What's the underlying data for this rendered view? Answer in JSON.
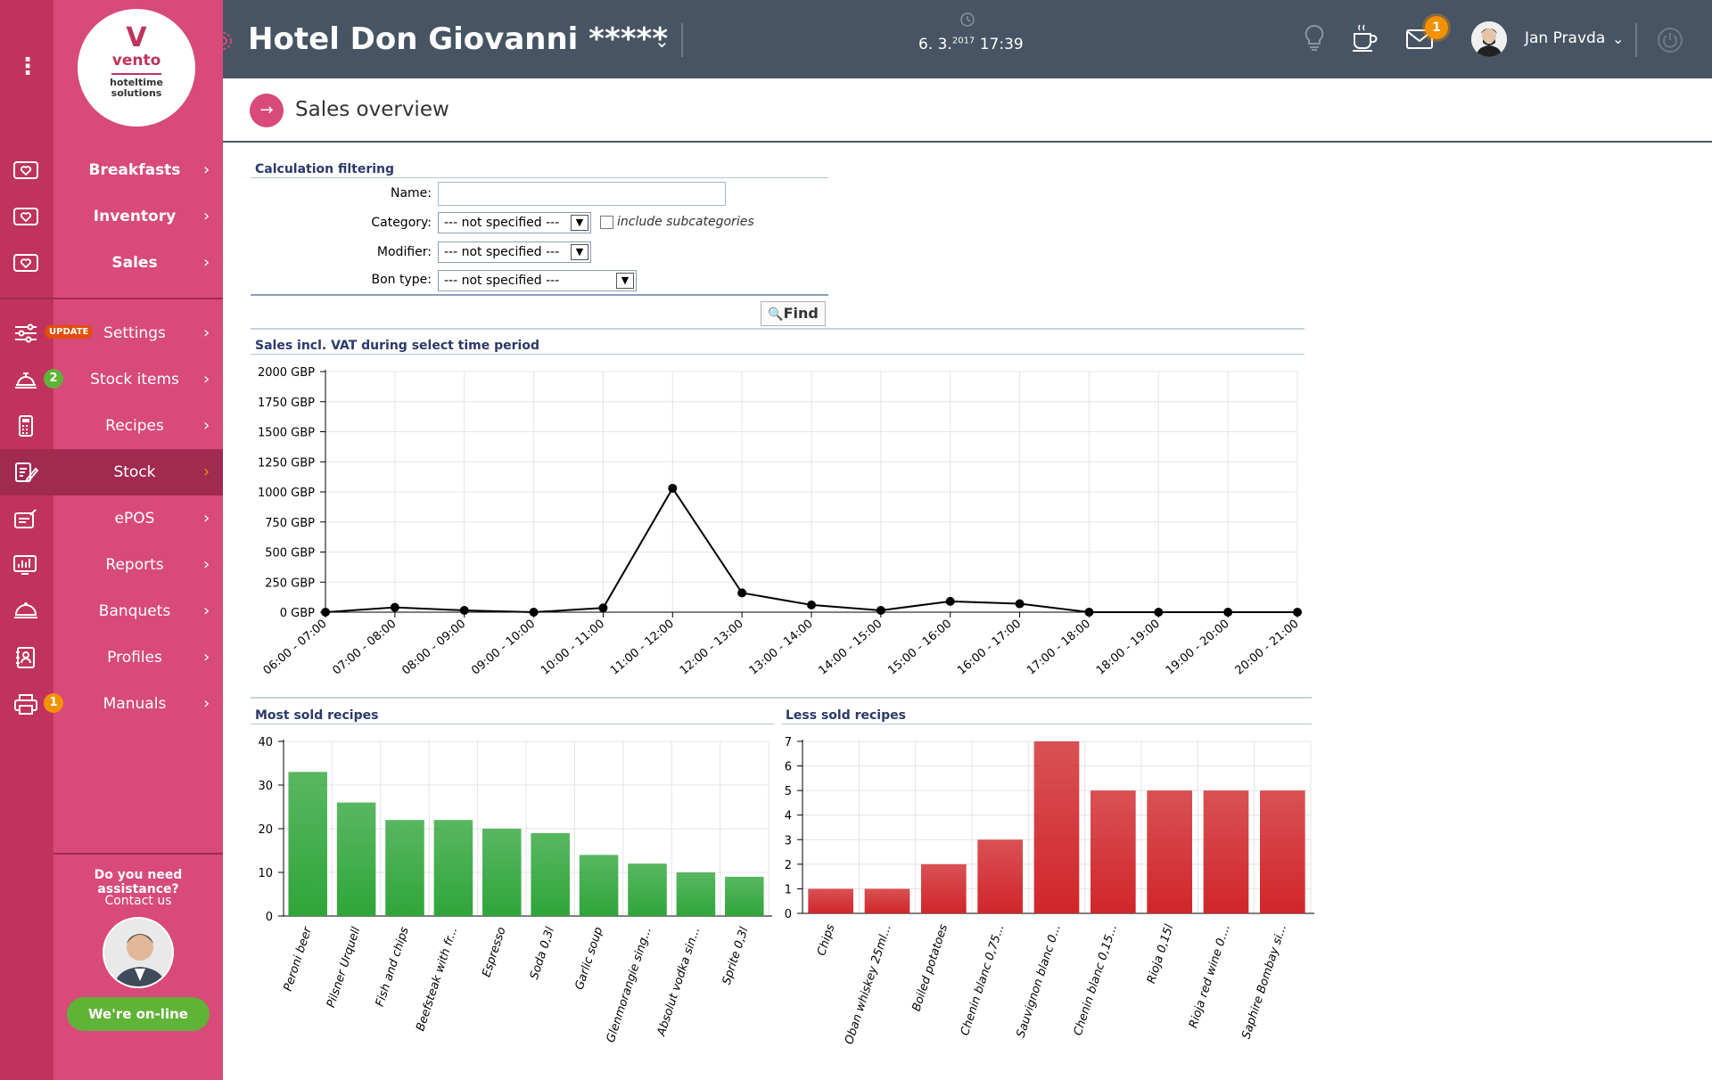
{
  "logo": {
    "mark": "V",
    "name": "vento",
    "sub1": "hoteltime",
    "sub2": "solutions"
  },
  "sidebar": {
    "items": [
      {
        "label": "Breakfasts",
        "bold": true
      },
      {
        "label": "Inventory",
        "bold": true
      },
      {
        "label": "Sales",
        "bold": true
      },
      {
        "label": "Settings",
        "badge": "UPDATE"
      },
      {
        "label": "Stock items",
        "badge": "2"
      },
      {
        "label": "Recipes"
      },
      {
        "label": "Stock",
        "active": true
      },
      {
        "label": "ePOS"
      },
      {
        "label": "Reports"
      },
      {
        "label": "Banquets"
      },
      {
        "label": "Profiles"
      },
      {
        "label": "Manuals",
        "badge": "1"
      }
    ],
    "chevron": "›",
    "assist_title": "Do you need assistance?",
    "assist_link": "Contact us",
    "online_button": "We're on-line"
  },
  "header": {
    "hotel_name": "Hotel Don Giovanni *****",
    "date": "6. 3.",
    "year": "2017",
    "time": "17:39",
    "mail_count": "1",
    "user_name": "Jan Pravda"
  },
  "page": {
    "title": "Sales overview"
  },
  "filter": {
    "section_title": "Calculation filtering",
    "name_label": "Name:",
    "name_value": "",
    "category_label": "Category:",
    "category_value": "--- not specified ---",
    "include_sub_label": "include subcategories",
    "modifier_label": "Modifier:",
    "modifier_value": "--- not specified ---",
    "bon_type_label": "Bon type:",
    "bon_type_value": "--- not specified ---",
    "find_label": "Find"
  },
  "colors": {
    "sidebar_dark": "#c0335e",
    "sidebar": "#d84a79",
    "topbar": "#465464",
    "accent": "#f39200",
    "online": "#5fb336"
  },
  "chart_data": [
    {
      "type": "line",
      "title": "Sales incl. VAT during select time period",
      "categories": [
        "06:00 - 07:00",
        "07:00 - 08:00",
        "08:00 - 09:00",
        "09:00 - 10:00",
        "10:00 - 11:00",
        "11:00 - 12:00",
        "12:00 - 13:00",
        "13:00 - 14:00",
        "14:00 - 15:00",
        "15:00 - 16:00",
        "16:00 - 17:00",
        "17:00 - 18:00",
        "18:00 - 19:00",
        "19:00 - 20:00",
        "20:00 - 21:00"
      ],
      "values": [
        0,
        40,
        15,
        0,
        35,
        1030,
        160,
        60,
        15,
        90,
        70,
        0,
        0,
        0,
        0
      ],
      "yticks": [
        "0 GBP",
        "250 GBP",
        "500 GBP",
        "750 GBP",
        "1000 GBP",
        "1250 GBP",
        "1500 GBP",
        "1750 GBP",
        "2000 GBP"
      ],
      "ylim": [
        0,
        2000
      ],
      "grid": true
    },
    {
      "type": "bar",
      "title": "Most sold recipes",
      "categories": [
        "Peroni beer",
        "Pilsner Urquell",
        "Fish and chips",
        "Beefsteak with fr...",
        "Espresso",
        "Soda 0,3l",
        "Garlic soup",
        "Glenmorangie sing...",
        "Absolut vodka sin...",
        "Sprite 0,3l"
      ],
      "values": [
        33,
        26,
        22,
        22,
        20,
        19,
        14,
        12,
        10,
        9
      ],
      "yticks": [
        "0",
        "10",
        "20",
        "30",
        "40"
      ],
      "ylim": [
        0,
        40
      ],
      "color": "#2fa53a",
      "grid": true
    },
    {
      "type": "bar",
      "title": "Less sold recipes",
      "categories": [
        "Chips",
        "Oban whiskey 25ml...",
        "Boiled potatoes",
        "Chenin blanc 0,75...",
        "Sauvignon blanc 0...",
        "Chenin blanc 0,15...",
        "Rioja 0,15l",
        "Rioja red wine 0....",
        "Saphire Bombay si..."
      ],
      "values": [
        1,
        1,
        2,
        3,
        7,
        5,
        5,
        5,
        5
      ],
      "yticks": [
        "0",
        "1",
        "2",
        "3",
        "4",
        "5",
        "6",
        "7"
      ],
      "ylim": [
        0,
        7
      ],
      "color": "#d0262a",
      "grid": true
    }
  ]
}
